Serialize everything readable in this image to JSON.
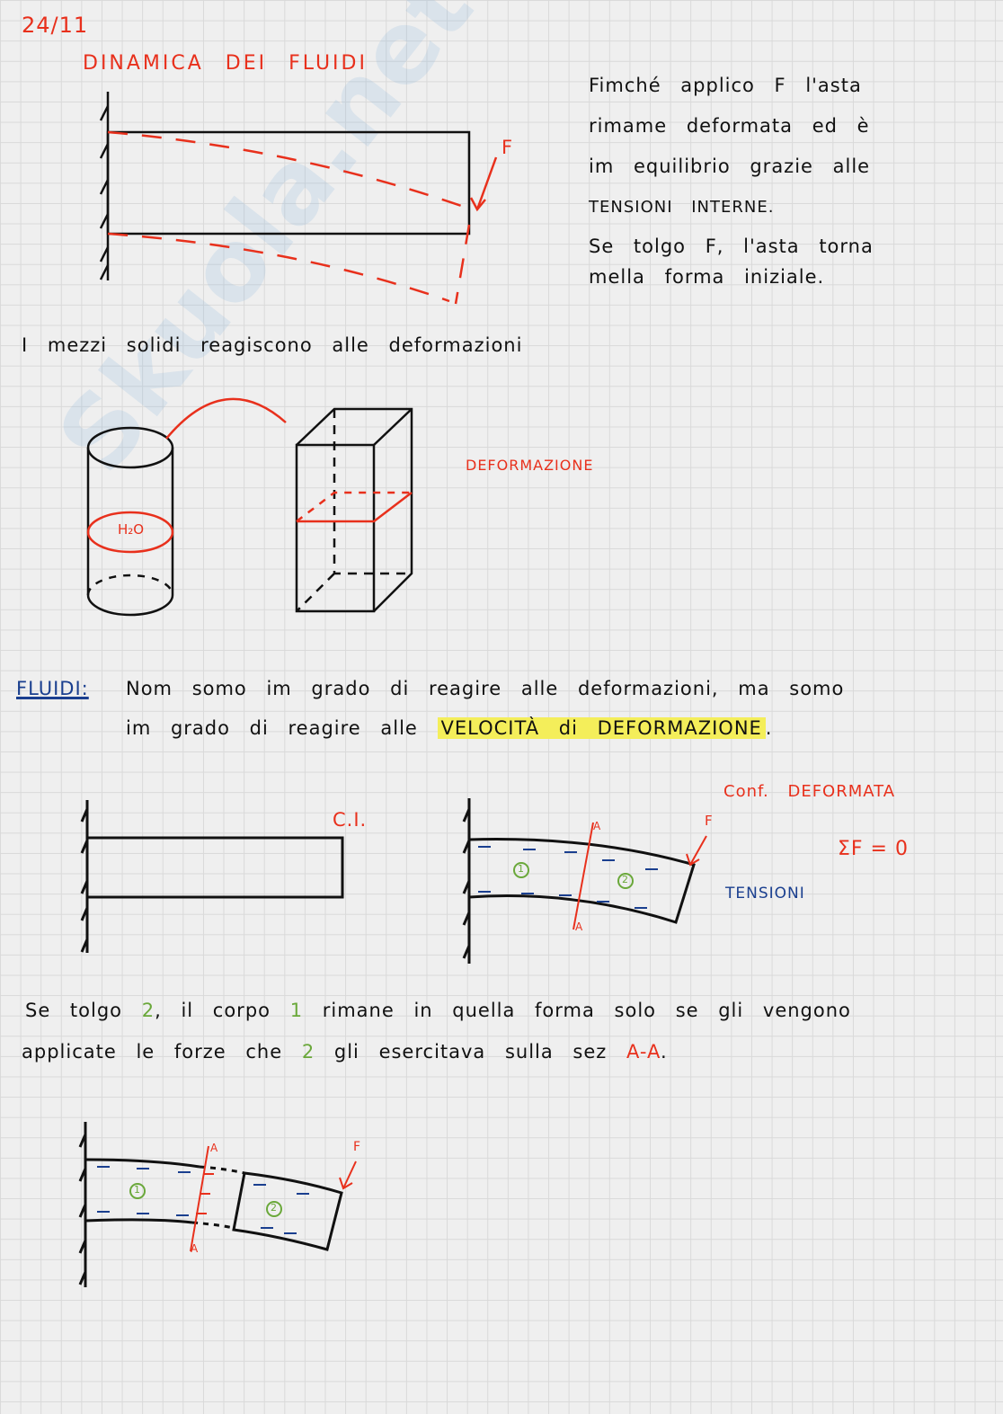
{
  "date": "24/11",
  "title": "DINAMICA DEI FLUIDI",
  "watermark": "Skuola.net",
  "section1": {
    "force_label": "F",
    "notes": [
      "Fimché applico F l'asta",
      "rimame deformata ed è",
      "im equilibrio grazie alle",
      "TENSIONI INTERNE.",
      "Se tolgo F, l'asta torna",
      "mella forma iniziale."
    ]
  },
  "solids_line": "I mezzi solidi reagiscono alle deformazioni",
  "section2": {
    "water_label": "H₂O",
    "deformation_label": "DEFORMAZIONE"
  },
  "fluids": {
    "heading": "FLUIDI:",
    "line1": "Nom somo im grado di reagire alle deformazioni, ma somo",
    "line2_start": "im grado di reagire alle",
    "highlight": "VELOCITÀ di DEFORMAZIONE",
    "line2_end": "."
  },
  "section3": {
    "initial_config": "C.I.",
    "deformed_config": "Conf. DEFORMATA",
    "force_label": "F",
    "section_label": "A",
    "sum_forces": "ΣF = 0",
    "tensions": "TENSIONI",
    "body1": "1",
    "body2": "2"
  },
  "paragraph": {
    "l1a": "Se tolgo",
    "l1b": ", il corpo",
    "l1c": "rimane in quella forma solo se gli vengono",
    "l2a": "applicate le forze che",
    "l2b": "gli esercitava sulla sez",
    "l2c": "A-A",
    "l2d": "."
  }
}
